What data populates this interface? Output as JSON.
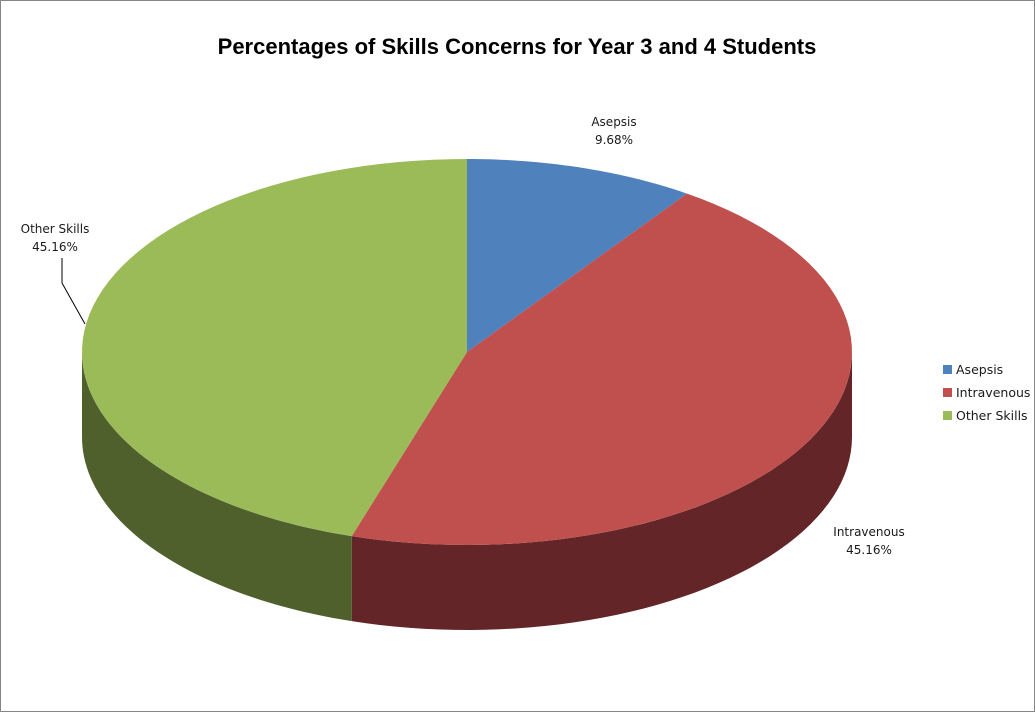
{
  "chart_data": {
    "type": "pie",
    "style": "3d",
    "title": "Percentages of Skills Concerns for Year 3 and 4 Students",
    "categories": [
      "Asepsis",
      "Intravenous",
      "Other Skills"
    ],
    "values": [
      9.68,
      45.16,
      45.16
    ],
    "data_labels": [
      "9.68%",
      "45.16%",
      "45.16%"
    ],
    "colors": [
      "#4F81BD",
      "#C0504D",
      "#9BBB59"
    ],
    "side_colors": [
      "#34557E",
      "#632527",
      "#4F602D"
    ],
    "legend": {
      "position": "right",
      "entries": [
        "Asepsis",
        "Intravenous",
        "Other Skills"
      ]
    }
  }
}
